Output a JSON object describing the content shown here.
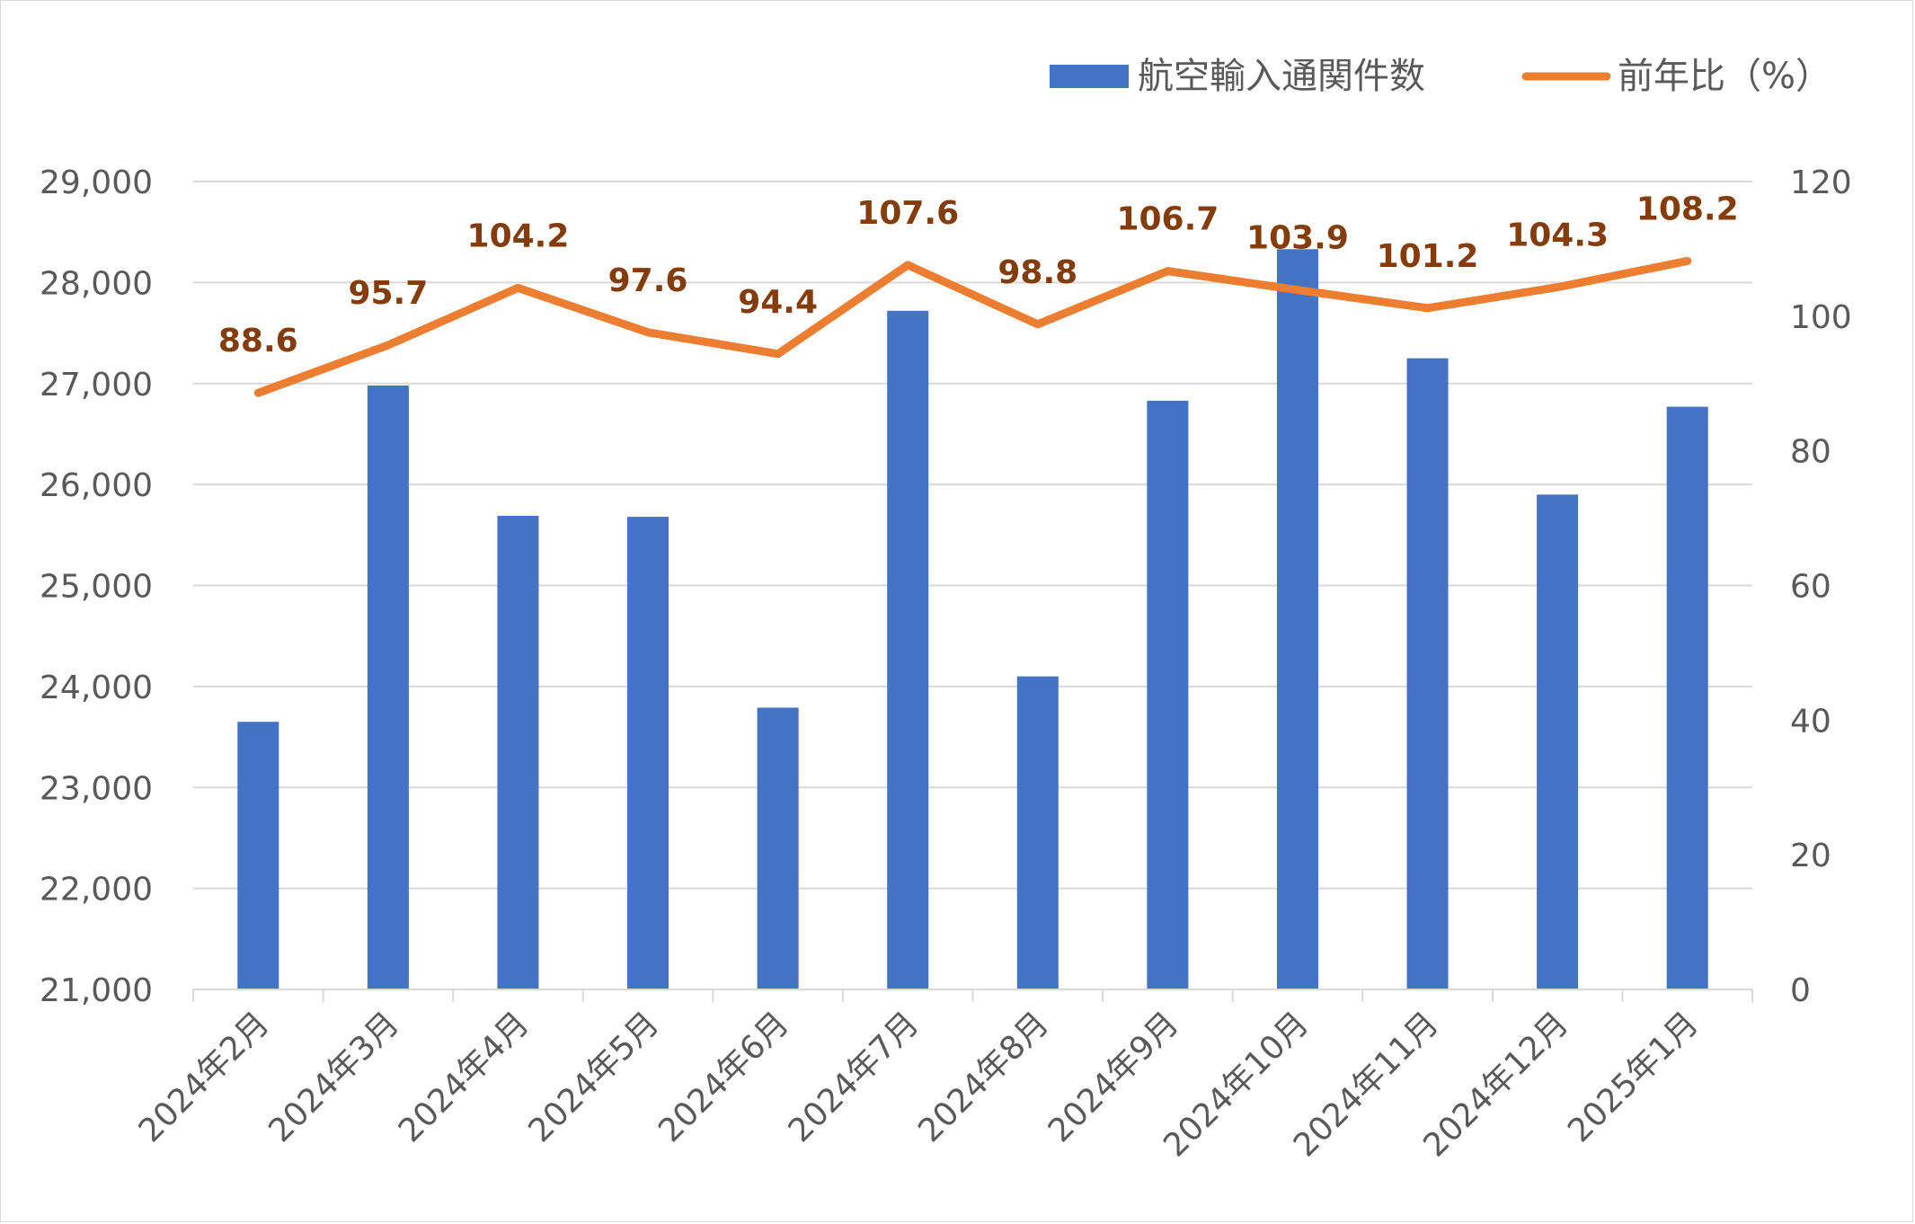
{
  "chart_data": {
    "type": "bar+line",
    "categories": [
      "2024年2月",
      "2024年3月",
      "2024年4月",
      "2024年5月",
      "2024年6月",
      "2024年7月",
      "2024年8月",
      "2024年9月",
      "2024年10月",
      "2024年11月",
      "2024年12月",
      "2025年1月"
    ],
    "series": [
      {
        "name": "航空輸入通関件数",
        "type": "bar",
        "axis": "left",
        "color": "#4472c4",
        "values": [
          23650,
          26980,
          25690,
          25680,
          23790,
          27720,
          24100,
          26830,
          28330,
          27250,
          25900,
          26770
        ]
      },
      {
        "name": "前年比（%）",
        "type": "line",
        "axis": "right",
        "color": "#ed7d31",
        "values": [
          88.6,
          95.7,
          104.2,
          97.6,
          94.4,
          107.6,
          98.8,
          106.7,
          103.9,
          101.2,
          104.3,
          108.2
        ],
        "labels": [
          "88.6",
          "95.7",
          "104.2",
          "97.6",
          "94.4",
          "107.6",
          "98.8",
          "106.7",
          "103.9",
          "101.2",
          "104.3",
          "108.2"
        ]
      }
    ],
    "y_left": {
      "min": 21000,
      "max": 29000,
      "step": 1000,
      "ticks": [
        "21,000",
        "22,000",
        "23,000",
        "24,000",
        "25,000",
        "26,000",
        "27,000",
        "28,000",
        "29,000"
      ]
    },
    "y_right": {
      "min": 0,
      "max": 120,
      "step": 20,
      "ticks": [
        "0",
        "20",
        "40",
        "60",
        "80",
        "100",
        "120"
      ]
    },
    "grid": true,
    "legend": "top-right"
  }
}
